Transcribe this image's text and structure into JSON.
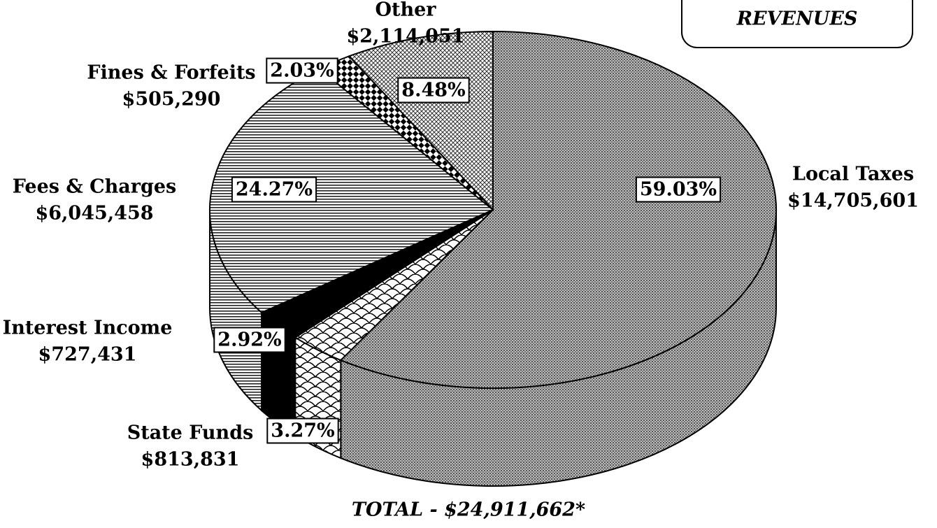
{
  "chart_data": {
    "type": "pie",
    "title": "REVENUES",
    "footer": "TOTAL - $24,911,662*",
    "categories": [
      "Local Taxes",
      "State Funds",
      "Interest Income",
      "Fees & Charges",
      "Fines & Forfeits",
      "Other"
    ],
    "amounts": [
      "$14,705,601",
      "$813,831",
      "$727,431",
      "$6,045,458",
      "$505,290",
      "$2,114,051"
    ],
    "values": [
      59.03,
      3.27,
      2.92,
      24.27,
      2.03,
      8.48
    ],
    "value_labels": [
      "59.03%",
      "3.27%",
      "2.92%",
      "24.27%",
      "2.03%",
      "8.48%"
    ]
  }
}
